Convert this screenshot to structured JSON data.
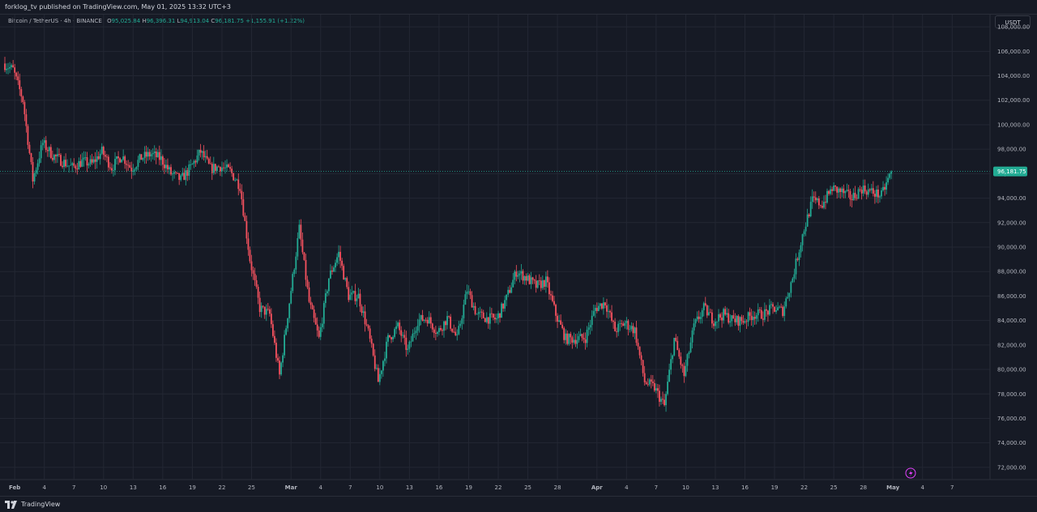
{
  "header": {
    "publisher_text": "forklog_tv published on TradingView.com, May 01, 2025 13:32 UTC+3"
  },
  "footer": {
    "brand": "TradingView"
  },
  "legend": {
    "symbol": "Bitcoin / TetherUS · 4h · BINANCE",
    "open_key": "O",
    "open": "95,025.84",
    "high_key": "H",
    "high": "96,396.31",
    "low_key": "L",
    "low": "94,913.04",
    "close_key": "C",
    "close": "96,181.75",
    "change": "+1,155.91 (+1.22%)"
  },
  "currency_button": "USDT",
  "last_price_label": "96,181.75",
  "colors": {
    "up": "#22ab94",
    "down": "#f7525f",
    "background": "#161a25",
    "grid": "#232733",
    "last_price": "#22ab94"
  },
  "chart_data": {
    "type": "candlestick",
    "timeframe": "4h",
    "y_axis": {
      "ticks": [
        72000,
        74000,
        76000,
        78000,
        80000,
        82000,
        84000,
        86000,
        88000,
        90000,
        92000,
        94000,
        96000,
        98000,
        100000,
        102000,
        104000,
        106000,
        108000
      ],
      "tick_labels": [
        "72,000.00",
        "74,000.00",
        "76,000.00",
        "78,000.00",
        "80,000.00",
        "82,000.00",
        "84,000.00",
        "86,000.00",
        "88,000.00",
        "90,000.00",
        "92,000.00",
        "94,000.00",
        "96,000.00",
        "98,000.00",
        "100,000.00",
        "102,000.00",
        "104,000.00",
        "106,000.00",
        "108,000.00"
      ],
      "range": [
        71000,
        109000
      ]
    },
    "x_axis": {
      "ticks": [
        {
          "label": "Feb",
          "date": "2025-02-01",
          "bold": true
        },
        {
          "label": "4",
          "date": "2025-02-04"
        },
        {
          "label": "7",
          "date": "2025-02-07"
        },
        {
          "label": "10",
          "date": "2025-02-10"
        },
        {
          "label": "13",
          "date": "2025-02-13"
        },
        {
          "label": "16",
          "date": "2025-02-16"
        },
        {
          "label": "19",
          "date": "2025-02-19"
        },
        {
          "label": "22",
          "date": "2025-02-22"
        },
        {
          "label": "25",
          "date": "2025-02-25"
        },
        {
          "label": "Mar",
          "date": "2025-03-01",
          "bold": true
        },
        {
          "label": "4",
          "date": "2025-03-04"
        },
        {
          "label": "7",
          "date": "2025-03-07"
        },
        {
          "label": "10",
          "date": "2025-03-10"
        },
        {
          "label": "13",
          "date": "2025-03-13"
        },
        {
          "label": "16",
          "date": "2025-03-16"
        },
        {
          "label": "19",
          "date": "2025-03-19"
        },
        {
          "label": "22",
          "date": "2025-03-22"
        },
        {
          "label": "25",
          "date": "2025-03-25"
        },
        {
          "label": "28",
          "date": "2025-03-28"
        },
        {
          "label": "Apr",
          "date": "2025-04-01",
          "bold": true
        },
        {
          "label": "4",
          "date": "2025-04-04"
        },
        {
          "label": "7",
          "date": "2025-04-07"
        },
        {
          "label": "10",
          "date": "2025-04-10"
        },
        {
          "label": "13",
          "date": "2025-04-13"
        },
        {
          "label": "16",
          "date": "2025-04-16"
        },
        {
          "label": "19",
          "date": "2025-04-19"
        },
        {
          "label": "22",
          "date": "2025-04-22"
        },
        {
          "label": "25",
          "date": "2025-04-25"
        },
        {
          "label": "28",
          "date": "2025-04-28"
        },
        {
          "label": "May",
          "date": "2025-05-01",
          "bold": true
        },
        {
          "label": "4",
          "date": "2025-05-04"
        },
        {
          "label": "7",
          "date": "2025-05-07"
        }
      ]
    },
    "last_price": 96181.75,
    "price_path": [
      [
        "2025-01-31",
        105000
      ],
      [
        "2025-02-01",
        104500
      ],
      [
        "2025-02-02",
        102000
      ],
      [
        "2025-02-03",
        95500
      ],
      [
        "2025-02-04",
        98500
      ],
      [
        "2025-02-05",
        97500
      ],
      [
        "2025-02-06",
        97000
      ],
      [
        "2025-02-07",
        96500
      ],
      [
        "2025-02-08",
        97000
      ],
      [
        "2025-02-09",
        96800
      ],
      [
        "2025-02-10",
        97800
      ],
      [
        "2025-02-11",
        96500
      ],
      [
        "2025-02-12",
        97500
      ],
      [
        "2025-02-13",
        96400
      ],
      [
        "2025-02-14",
        97300
      ],
      [
        "2025-02-15",
        97600
      ],
      [
        "2025-02-16",
        97200
      ],
      [
        "2025-02-17",
        96000
      ],
      [
        "2025-02-18",
        95500
      ],
      [
        "2025-02-19",
        96500
      ],
      [
        "2025-02-20",
        97800
      ],
      [
        "2025-02-21",
        96400
      ],
      [
        "2025-02-22",
        96600
      ],
      [
        "2025-02-23",
        96200
      ],
      [
        "2025-02-24",
        95000
      ],
      [
        "2025-02-25",
        89000
      ],
      [
        "2025-02-26",
        85000
      ],
      [
        "2025-02-27",
        84500
      ],
      [
        "2025-02-28",
        79500
      ],
      [
        "2025-03-01",
        85500
      ],
      [
        "2025-03-02",
        91500
      ],
      [
        "2025-03-03",
        85500
      ],
      [
        "2025-03-04",
        82500
      ],
      [
        "2025-03-05",
        87500
      ],
      [
        "2025-03-06",
        89500
      ],
      [
        "2025-03-07",
        86000
      ],
      [
        "2025-03-08",
        86000
      ],
      [
        "2025-03-09",
        83000
      ],
      [
        "2025-03-10",
        79000
      ],
      [
        "2025-03-11",
        82500
      ],
      [
        "2025-03-12",
        83500
      ],
      [
        "2025-03-13",
        81500
      ],
      [
        "2025-03-14",
        84000
      ],
      [
        "2025-03-15",
        84200
      ],
      [
        "2025-03-16",
        83000
      ],
      [
        "2025-03-17",
        84200
      ],
      [
        "2025-03-18",
        82500
      ],
      [
        "2025-03-19",
        86500
      ],
      [
        "2025-03-20",
        84500
      ],
      [
        "2025-03-21",
        84200
      ],
      [
        "2025-03-22",
        84100
      ],
      [
        "2025-03-23",
        85800
      ],
      [
        "2025-03-24",
        88000
      ],
      [
        "2025-03-25",
        87500
      ],
      [
        "2025-03-26",
        86800
      ],
      [
        "2025-03-27",
        87200
      ],
      [
        "2025-03-28",
        84500
      ],
      [
        "2025-03-29",
        82500
      ],
      [
        "2025-03-30",
        82500
      ],
      [
        "2025-03-31",
        82600
      ],
      [
        "2025-04-01",
        85000
      ],
      [
        "2025-04-02",
        85500
      ],
      [
        "2025-04-03",
        83200
      ],
      [
        "2025-04-04",
        83800
      ],
      [
        "2025-04-05",
        83200
      ],
      [
        "2025-04-06",
        79000
      ],
      [
        "2025-04-07",
        78500
      ],
      [
        "2025-04-08",
        77000
      ],
      [
        "2025-04-09",
        82500
      ],
      [
        "2025-04-10",
        79500
      ],
      [
        "2025-04-11",
        83500
      ],
      [
        "2025-04-12",
        85000
      ],
      [
        "2025-04-13",
        84000
      ],
      [
        "2025-04-14",
        84500
      ],
      [
        "2025-04-15",
        84000
      ],
      [
        "2025-04-16",
        84000
      ],
      [
        "2025-04-17",
        84500
      ],
      [
        "2025-04-18",
        84500
      ],
      [
        "2025-04-19",
        85000
      ],
      [
        "2025-04-20",
        84800
      ],
      [
        "2025-04-21",
        87500
      ],
      [
        "2025-04-22",
        91000
      ],
      [
        "2025-04-23",
        93800
      ],
      [
        "2025-04-24",
        93500
      ],
      [
        "2025-04-25",
        94800
      ],
      [
        "2025-04-26",
        94500
      ],
      [
        "2025-04-27",
        94000
      ],
      [
        "2025-04-28",
        94800
      ],
      [
        "2025-04-29",
        94500
      ],
      [
        "2025-04-30",
        94200
      ],
      [
        "2025-05-01",
        96180
      ]
    ]
  }
}
